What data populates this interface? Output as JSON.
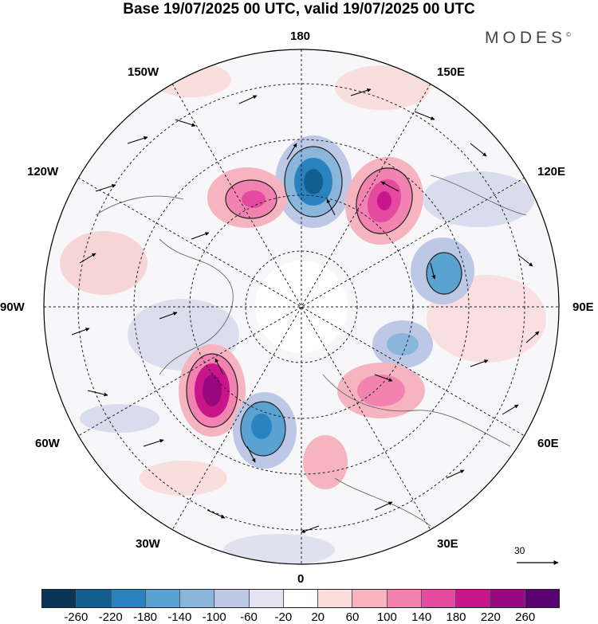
{
  "header": {
    "title": "Base 19/07/2025 00 UTC, valid 19/07/2025 00 UTC",
    "brand": "MODES",
    "brand_mark": "©"
  },
  "map": {
    "projection": "north polar stereographic",
    "longitude_labels": {
      "top": "180",
      "top_right": "150E",
      "right_upper": "120E",
      "right": "90E",
      "right_lower": "60E",
      "bottom_right": "30E",
      "bottom": "0",
      "bottom_left": "30W",
      "left_lower": "60W",
      "left": "90W",
      "left_upper": "120W",
      "top_left": "150W"
    },
    "reference_vector": "30"
  },
  "colorbar": {
    "colors": [
      "#0b3558",
      "#135e91",
      "#2a83bf",
      "#5aa2d1",
      "#8bb6dc",
      "#bdc7e6",
      "#e4e3f3",
      "#ffffff",
      "#fadcdc",
      "#f6b4c1",
      "#f283b0",
      "#e44aa0",
      "#c8168a",
      "#98087e",
      "#5a0370"
    ],
    "ticks": [
      "-260",
      "-220",
      "-180",
      "-140",
      "-100",
      "-60",
      "-20",
      "20",
      "60",
      "100",
      "140",
      "180",
      "220",
      "260"
    ]
  }
}
